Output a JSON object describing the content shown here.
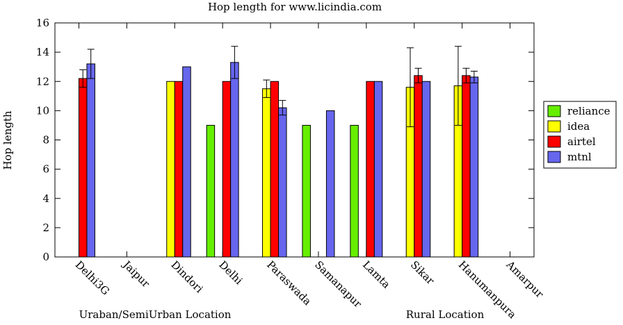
{
  "chart_data": {
    "type": "bar",
    "title": "Hop length for www.licindia.com",
    "xlabel": "",
    "ylabel": "Hop length",
    "ylim": [
      0,
      16
    ],
    "yticks": [
      "0",
      "2",
      "4",
      "6",
      "8",
      "10",
      "12",
      "14",
      "16"
    ],
    "grid": false,
    "legend_position": "right",
    "categories": [
      "Delhi3G",
      "Jaipur",
      "Dindori",
      "Delhi",
      "Paraswada",
      "Samanapur",
      "Lamta",
      "Sikar",
      "Hanumanpura",
      "Amarpur"
    ],
    "group_labels": [
      "Uraban/SemiUrban Location",
      "Rural Location"
    ],
    "series": [
      {
        "name": "reliance",
        "color": "#66ee00",
        "values": [
          null,
          null,
          null,
          9,
          null,
          9,
          9,
          null,
          null,
          null
        ],
        "errors": [
          null,
          null,
          null,
          null,
          null,
          null,
          null,
          null,
          null,
          null
        ]
      },
      {
        "name": "idea",
        "color": "#ffff00",
        "values": [
          null,
          null,
          12,
          null,
          11.5,
          null,
          null,
          11.6,
          11.7,
          null
        ],
        "errors": [
          null,
          null,
          null,
          null,
          0.6,
          null,
          null,
          2.7,
          2.7,
          null
        ]
      },
      {
        "name": "airtel",
        "color": "#ff0000",
        "values": [
          12.2,
          null,
          12,
          12,
          12,
          null,
          12,
          12.4,
          12.4,
          null
        ],
        "errors": [
          0.6,
          null,
          null,
          null,
          null,
          null,
          null,
          0.5,
          0.5,
          null
        ]
      },
      {
        "name": "mtnl",
        "color": "#6666ee",
        "values": [
          13.2,
          null,
          13,
          13.3,
          10.2,
          10,
          12,
          12,
          12.3,
          null
        ],
        "errors": [
          1.0,
          null,
          null,
          1.1,
          0.5,
          null,
          null,
          null,
          0.4,
          null
        ]
      }
    ]
  }
}
